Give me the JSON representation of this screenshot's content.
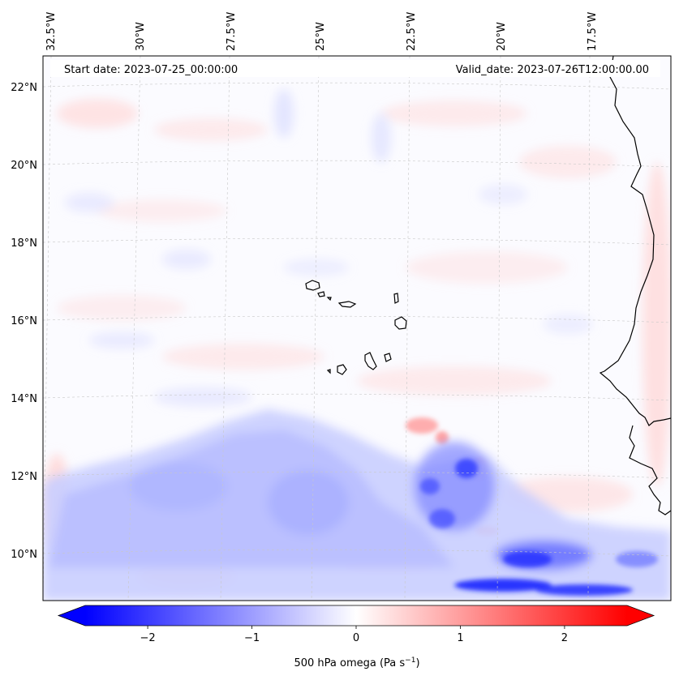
{
  "map": {
    "start_date_text": "Start date: 2023-07-25_00:00:00",
    "valid_date_text": "Valid_date: 2023-07-26T12:00:00.00",
    "lon_ticks": [
      "32.5°W",
      "30°W",
      "27.5°W",
      "25°W",
      "22.5°W",
      "20°W",
      "17.5°W"
    ],
    "lat_ticks": [
      "22°N",
      "20°N",
      "18°N",
      "16°N",
      "14°N",
      "12°N",
      "10°N"
    ],
    "field_colors": {
      "strong_negative": "#0000ff",
      "neutral": "#ffffff",
      "strong_positive": "#ff0000"
    }
  },
  "colorbar": {
    "ticks": [
      "−2",
      "−1",
      "0",
      "1",
      "2"
    ],
    "tick_values": [
      -2,
      -1,
      0,
      1,
      2
    ],
    "range": [
      -2.6,
      2.6
    ],
    "label_main": "500 hPa omega (Pa s",
    "label_sup": "−1",
    "label_close": ")"
  }
}
